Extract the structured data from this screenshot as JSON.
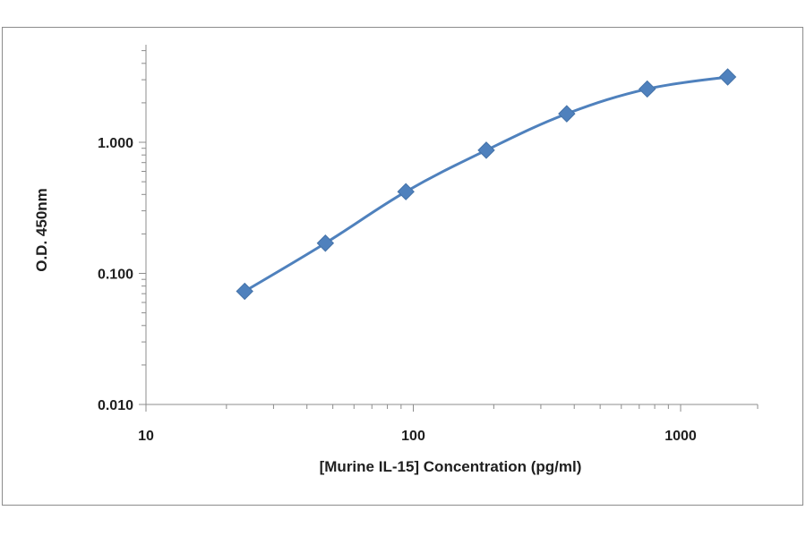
{
  "chart_data": {
    "type": "line",
    "title": "",
    "xlabel": "[Murine IL-15]  Concentration  (pg/ml)",
    "ylabel": "O.D. 450nm",
    "x_scale": "log",
    "y_scale": "log",
    "xlim": [
      10,
      2000
    ],
    "ylim": [
      0.01,
      7
    ],
    "x_ticks": [
      10,
      100,
      1000
    ],
    "x_tick_labels": [
      "10",
      "100",
      "1000"
    ],
    "y_ticks": [
      0.01,
      0.1,
      1
    ],
    "y_tick_labels": [
      "0.010",
      "0.100",
      "1.000"
    ],
    "grid": false,
    "legend": "none",
    "series": [
      {
        "marker": "diamond",
        "color": "#4F81BD",
        "x": [
          23.4,
          46.9,
          93.8,
          187.5,
          375,
          750,
          1500
        ],
        "y": [
          0.073,
          0.17,
          0.42,
          0.87,
          1.65,
          2.55,
          3.15
        ]
      }
    ]
  }
}
